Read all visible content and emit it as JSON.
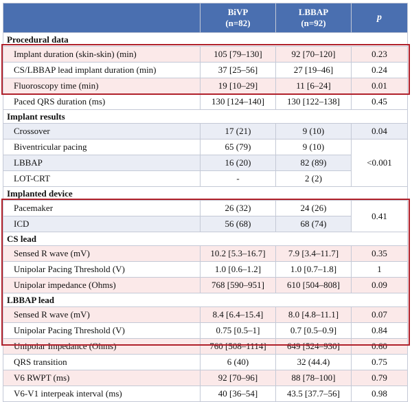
{
  "header": {
    "col1": "BiVP",
    "col1_n": "(n=82)",
    "col2": "LBBAP",
    "col2_n": "(n=92)",
    "col3": "p"
  },
  "sections": [
    {
      "title": "Procedural data",
      "rows": [
        {
          "label": "Implant duration (skin-skin) (min)",
          "bivp": "105 [79–130]",
          "lbbap": "92 [70–120]",
          "p": "0.23"
        },
        {
          "label": "CS/LBBAP lead implant duration (min)",
          "bivp": "37 [25–56]",
          "lbbap": "27 [19–46]",
          "p": "0.24"
        },
        {
          "label": "Fluoroscopy time (min)",
          "bivp": "19 [10–29]",
          "lbbap": "11 [6–24]",
          "p": "0.01"
        },
        {
          "label": "Paced QRS duration (ms)",
          "bivp": "130 [124–140]",
          "lbbap": "130 [122–138]",
          "p": "0.45"
        }
      ]
    },
    {
      "title": "Implant results",
      "rows": [
        {
          "label": "Crossover",
          "bivp": "17 (21)",
          "lbbap": "9 (10)",
          "p": "0.04"
        },
        {
          "label": "Biventricular pacing",
          "bivp": "65 (79)",
          "lbbap": "9 (10)",
          "p": ""
        },
        {
          "label": "LBBAP",
          "bivp": "16 (20)",
          "lbbap": "82 (89)",
          "p": "<0.001"
        },
        {
          "label": "LOT-CRT",
          "bivp": "-",
          "lbbap": "2 (2)",
          "p": ""
        }
      ]
    },
    {
      "title": "Implanted device",
      "rows": [
        {
          "label": "Pacemaker",
          "bivp": "26 (32)",
          "lbbap": "24 (26)",
          "p": "0.41"
        },
        {
          "label": "ICD",
          "bivp": "56 (68)",
          "lbbap": "68 (74)",
          "p": ""
        }
      ]
    },
    {
      "title": "CS lead",
      "rows": [
        {
          "label": "Sensed R wave (mV)",
          "bivp": "10.2 [5.3–16.7]",
          "lbbap": "7.9 [3.4–11.7]",
          "p": "0.35"
        },
        {
          "label": "Unipolar Pacing Threshold (V)",
          "bivp": "1.0 [0.6–1.2]",
          "lbbap": "1.0 [0.7–1.8]",
          "p": "1"
        },
        {
          "label": "Unipolar impedance (Ohms)",
          "bivp": "768 [590–951]",
          "lbbap": "610 [504–808]",
          "p": "0.09"
        }
      ]
    },
    {
      "title": "LBBAP lead",
      "rows": [
        {
          "label": "Sensed R wave (mV)",
          "bivp": "8.4 [6.4–15.4]",
          "lbbap": "8.0 [4.8–11.1]",
          "p": "0.07"
        },
        {
          "label": "Unipolar Pacing Threshold (V)",
          "bivp": "0.75 [0.5–1]",
          "lbbap": "0.7 [0.5–0.9]",
          "p": "0.84"
        },
        {
          "label": "Unipolar Impedance (Ohms)",
          "bivp": "760 [508–1114]",
          "lbbap": "649 [524–930]",
          "p": "0.60"
        },
        {
          "label": "QRS transition",
          "bivp": "6 (40)",
          "lbbap": "32 (44.4)",
          "p": "0.75"
        },
        {
          "label": "V6 RWPT (ms)",
          "bivp": "92 [70–96]",
          "lbbap": "88 [78–100]",
          "p": "0.79"
        },
        {
          "label": "V6-V1 interpeak interval (ms)",
          "bivp": "40 [36–54]",
          "lbbap": "43.5 [37.7–56]",
          "p": "0.98"
        }
      ]
    }
  ]
}
